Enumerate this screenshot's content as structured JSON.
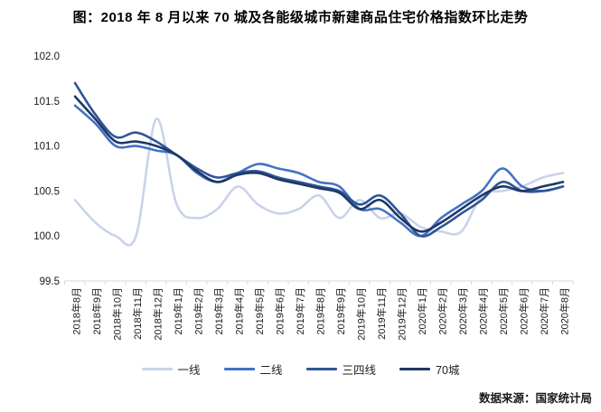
{
  "title": "图：2018 年 8 月以来 70 城及各能级城市新建商品住宅价格指数环比走势",
  "source": "数据来源：国家统计局",
  "chart_data": {
    "type": "line",
    "title": "图：2018 年 8 月以来 70 城及各能级城市新建商品住宅价格指数环比走势",
    "x": [
      "2018年8月",
      "2018年9月",
      "2018年10月",
      "2018年11月",
      "2018年12月",
      "2019年1月",
      "2019年2月",
      "2019年3月",
      "2019年4月",
      "2019年5月",
      "2019年6月",
      "2019年7月",
      "2019年8月",
      "2019年9月",
      "2019年10月",
      "2019年11月",
      "2019年12月",
      "2020年1月",
      "2020年2月",
      "2020年3月",
      "2020年4月",
      "2020年5月",
      "2020年6月",
      "2020年7月",
      "2020年8月"
    ],
    "series": [
      {
        "name": "一线",
        "color": "#C9D3EA",
        "values": [
          100.4,
          100.15,
          100.0,
          100.0,
          101.3,
          100.35,
          100.2,
          100.3,
          100.55,
          100.35,
          100.25,
          100.3,
          100.45,
          100.2,
          100.4,
          100.2,
          100.25,
          100.1,
          100.05,
          100.05,
          100.45,
          100.5,
          100.55,
          100.65,
          100.7
        ]
      },
      {
        "name": "二线",
        "color": "#4472C4",
        "values": [
          101.45,
          101.25,
          101.0,
          101.0,
          100.95,
          100.9,
          100.7,
          100.6,
          100.7,
          100.8,
          100.75,
          100.7,
          100.6,
          100.55,
          100.3,
          100.3,
          100.15,
          100.0,
          100.2,
          100.35,
          100.5,
          100.75,
          100.55,
          100.5,
          100.55
        ]
      },
      {
        "name": "三四线",
        "color": "#2F5597",
        "values": [
          101.7,
          101.35,
          101.1,
          101.15,
          101.05,
          100.9,
          100.75,
          100.65,
          100.7,
          100.72,
          100.65,
          100.6,
          100.55,
          100.5,
          100.35,
          100.45,
          100.25,
          100.0,
          100.1,
          100.25,
          100.4,
          100.6,
          100.5,
          100.5,
          100.55
        ]
      },
      {
        "name": "70城",
        "color": "#1F3864",
        "values": [
          101.55,
          101.3,
          101.05,
          101.05,
          101.0,
          100.9,
          100.72,
          100.6,
          100.68,
          100.7,
          100.63,
          100.58,
          100.53,
          100.48,
          100.3,
          100.4,
          100.2,
          100.05,
          100.15,
          100.3,
          100.45,
          100.55,
          100.5,
          100.55,
          100.6
        ]
      }
    ],
    "ylim": [
      99.5,
      102.0
    ],
    "yticks": [
      "99.5",
      "100.0",
      "100.5",
      "101.0",
      "101.5",
      "102.0"
    ],
    "grid": false,
    "legend_position": "bottom",
    "axis_color": "#D9D9D9",
    "label_color": "#1a1a1a"
  }
}
